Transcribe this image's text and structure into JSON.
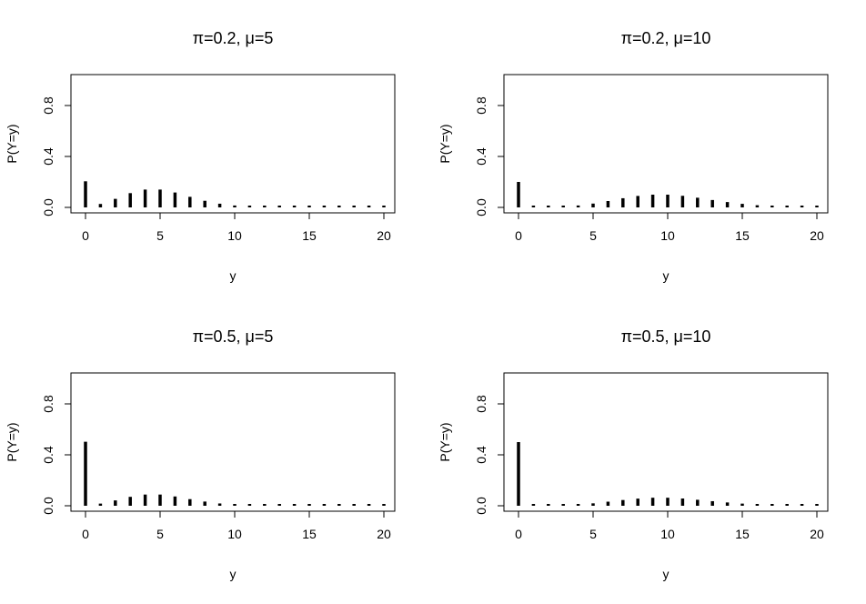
{
  "chart_data": [
    {
      "type": "bar",
      "title": "π=0.2, μ=5",
      "xlabel": "y",
      "ylabel": "P(Y=y)",
      "xlim": [
        -1,
        21
      ],
      "ylim": [
        0,
        1
      ],
      "xticks": [
        "0",
        "5",
        "10",
        "15",
        "20"
      ],
      "yticks": [
        "0.0",
        "0.4",
        "0.8"
      ],
      "x": [
        0,
        1,
        2,
        3,
        4,
        5,
        6,
        7,
        8,
        9,
        10,
        11,
        12,
        13,
        14,
        15,
        16,
        17,
        18,
        19,
        20
      ],
      "values": [
        0.205,
        0.027,
        0.067,
        0.112,
        0.14,
        0.14,
        0.117,
        0.083,
        0.052,
        0.029,
        0.015,
        0.007,
        0.003,
        0.001,
        0.0005,
        0.0002,
        0.0001,
        0.0,
        0.0,
        0.0,
        0.0
      ]
    },
    {
      "type": "bar",
      "title": "π=0.2, μ=10",
      "xlabel": "y",
      "ylabel": "P(Y=y)",
      "xlim": [
        -1,
        21
      ],
      "ylim": [
        0,
        1
      ],
      "xticks": [
        "0",
        "5",
        "10",
        "15",
        "20"
      ],
      "yticks": [
        "0.0",
        "0.4",
        "0.8"
      ],
      "x": [
        0,
        1,
        2,
        3,
        4,
        5,
        6,
        7,
        8,
        9,
        10,
        11,
        12,
        13,
        14,
        15,
        16,
        17,
        18,
        19,
        20
      ],
      "values": [
        0.2,
        0.0004,
        0.002,
        0.006,
        0.015,
        0.03,
        0.05,
        0.072,
        0.09,
        0.1,
        0.1,
        0.091,
        0.076,
        0.058,
        0.042,
        0.028,
        0.017,
        0.01,
        0.006,
        0.003,
        0.002
      ]
    },
    {
      "type": "bar",
      "title": "π=0.5, μ=5",
      "xlabel": "y",
      "ylabel": "P(Y=y)",
      "xlim": [
        -1,
        21
      ],
      "ylim": [
        0,
        1
      ],
      "xticks": [
        "0",
        "5",
        "10",
        "15",
        "20"
      ],
      "yticks": [
        "0.0",
        "0.4",
        "0.8"
      ],
      "x": [
        0,
        1,
        2,
        3,
        4,
        5,
        6,
        7,
        8,
        9,
        10,
        11,
        12,
        13,
        14,
        15,
        16,
        17,
        18,
        19,
        20
      ],
      "values": [
        0.503,
        0.017,
        0.042,
        0.07,
        0.088,
        0.088,
        0.073,
        0.052,
        0.033,
        0.018,
        0.009,
        0.004,
        0.002,
        0.001,
        0.0003,
        0.0001,
        0.0,
        0.0,
        0.0,
        0.0,
        0.0
      ]
    },
    {
      "type": "bar",
      "title": "π=0.5, μ=10",
      "xlabel": "y",
      "ylabel": "P(Y=y)",
      "xlim": [
        -1,
        21
      ],
      "ylim": [
        0,
        1
      ],
      "xticks": [
        "0",
        "5",
        "10",
        "15",
        "20"
      ],
      "yticks": [
        "0.0",
        "0.4",
        "0.8"
      ],
      "x": [
        0,
        1,
        2,
        3,
        4,
        5,
        6,
        7,
        8,
        9,
        10,
        11,
        12,
        13,
        14,
        15,
        16,
        17,
        18,
        19,
        20
      ],
      "values": [
        0.5,
        0.0002,
        0.001,
        0.004,
        0.009,
        0.019,
        0.032,
        0.045,
        0.056,
        0.063,
        0.063,
        0.057,
        0.047,
        0.036,
        0.026,
        0.017,
        0.011,
        0.006,
        0.004,
        0.002,
        0.001
      ]
    }
  ]
}
